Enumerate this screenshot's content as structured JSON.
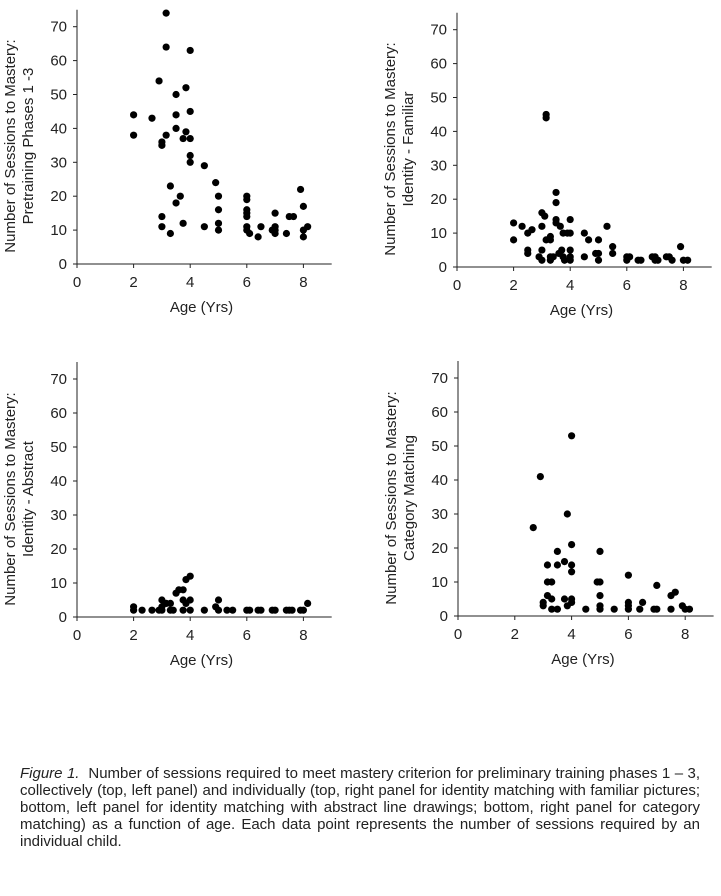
{
  "chart_data": [
    {
      "type": "scatter",
      "panel": "top-left",
      "xlabel": "Age (Yrs)",
      "ylabel": [
        "Number of Sessions to Mastery:",
        "Pretraining Phases 1 -3"
      ],
      "xlim": [
        0,
        9
      ],
      "ylim": [
        0,
        75
      ],
      "xticks": [
        0,
        2,
        4,
        6,
        8
      ],
      "yticks": [
        0,
        10,
        20,
        30,
        40,
        50,
        60,
        70
      ],
      "points": [
        [
          2,
          44
        ],
        [
          2,
          38
        ],
        [
          2.65,
          43
        ],
        [
          2.9,
          54
        ],
        [
          3,
          36
        ],
        [
          3,
          35
        ],
        [
          3,
          14
        ],
        [
          3,
          11
        ],
        [
          3.15,
          74
        ],
        [
          3.15,
          64
        ],
        [
          3.15,
          38
        ],
        [
          3.3,
          23
        ],
        [
          3.3,
          9
        ],
        [
          3.5,
          50
        ],
        [
          3.5,
          44
        ],
        [
          3.5,
          40
        ],
        [
          3.5,
          18
        ],
        [
          3.65,
          20
        ],
        [
          3.75,
          37
        ],
        [
          3.75,
          12
        ],
        [
          3.85,
          52
        ],
        [
          3.85,
          39
        ],
        [
          4,
          63
        ],
        [
          4,
          45
        ],
        [
          4,
          37
        ],
        [
          4,
          32
        ],
        [
          4,
          30
        ],
        [
          4.5,
          29
        ],
        [
          4.5,
          11
        ],
        [
          4.9,
          24
        ],
        [
          5,
          20
        ],
        [
          5,
          16
        ],
        [
          5,
          12
        ],
        [
          5,
          10
        ],
        [
          6,
          20
        ],
        [
          6,
          19
        ],
        [
          6,
          16
        ],
        [
          6,
          15
        ],
        [
          6,
          14
        ],
        [
          6,
          11
        ],
        [
          6,
          10
        ],
        [
          6.1,
          9
        ],
        [
          6.4,
          8
        ],
        [
          6.5,
          11
        ],
        [
          6.9,
          10
        ],
        [
          7,
          15
        ],
        [
          7,
          11
        ],
        [
          7,
          10
        ],
        [
          7,
          9
        ],
        [
          7.4,
          9
        ],
        [
          7.5,
          14
        ],
        [
          7.65,
          14
        ],
        [
          7.9,
          22
        ],
        [
          8,
          17
        ],
        [
          8,
          10
        ],
        [
          8,
          8
        ],
        [
          8.15,
          11
        ]
      ]
    },
    {
      "type": "scatter",
      "panel": "top-right",
      "xlabel": "Age (Yrs)",
      "ylabel": [
        "Number of Sessions to Mastery:",
        "Identity - Familiar"
      ],
      "xlim": [
        0,
        9
      ],
      "ylim": [
        0,
        75
      ],
      "xticks": [
        0,
        2,
        4,
        6,
        8
      ],
      "yticks": [
        0,
        10,
        20,
        30,
        40,
        50,
        60,
        70
      ],
      "points": [
        [
          2,
          13
        ],
        [
          2,
          8
        ],
        [
          2.3,
          12
        ],
        [
          2.5,
          10
        ],
        [
          2.5,
          5
        ],
        [
          2.5,
          4
        ],
        [
          2.65,
          11
        ],
        [
          2.9,
          3
        ],
        [
          3,
          16
        ],
        [
          3,
          12
        ],
        [
          3,
          5
        ],
        [
          3,
          2
        ],
        [
          3.1,
          15
        ],
        [
          3.15,
          45
        ],
        [
          3.15,
          44
        ],
        [
          3.15,
          8
        ],
        [
          3.3,
          9
        ],
        [
          3.3,
          8
        ],
        [
          3.3,
          3
        ],
        [
          3.3,
          2
        ],
        [
          3.4,
          3
        ],
        [
          3.5,
          22
        ],
        [
          3.5,
          19
        ],
        [
          3.5,
          14
        ],
        [
          3.5,
          13
        ],
        [
          3.6,
          4
        ],
        [
          3.65,
          12
        ],
        [
          3.7,
          5
        ],
        [
          3.75,
          10
        ],
        [
          3.75,
          3
        ],
        [
          3.8,
          2
        ],
        [
          3.9,
          10
        ],
        [
          4,
          14
        ],
        [
          4,
          10
        ],
        [
          4,
          5
        ],
        [
          4,
          3
        ],
        [
          4,
          2
        ],
        [
          4.5,
          10
        ],
        [
          4.5,
          3
        ],
        [
          4.65,
          8
        ],
        [
          4.9,
          4
        ],
        [
          5,
          8
        ],
        [
          5,
          4
        ],
        [
          5,
          2
        ],
        [
          5.3,
          12
        ],
        [
          5.5,
          6
        ],
        [
          5.5,
          4
        ],
        [
          6,
          3
        ],
        [
          6,
          2
        ],
        [
          6.1,
          3
        ],
        [
          6.4,
          2
        ],
        [
          6.5,
          2
        ],
        [
          6.9,
          3
        ],
        [
          7,
          3
        ],
        [
          7,
          2
        ],
        [
          7.1,
          2
        ],
        [
          7.4,
          3
        ],
        [
          7.5,
          3
        ],
        [
          7.6,
          2
        ],
        [
          7.9,
          6
        ],
        [
          8,
          2
        ],
        [
          8.15,
          2
        ]
      ]
    },
    {
      "type": "scatter",
      "panel": "bottom-left",
      "xlabel": "Age (Yrs)",
      "ylabel": [
        "Number of Sessions to Mastery:",
        "Identity - Abstract"
      ],
      "xlim": [
        0,
        9
      ],
      "ylim": [
        0,
        75
      ],
      "xticks": [
        0,
        2,
        4,
        6,
        8
      ],
      "yticks": [
        0,
        10,
        20,
        30,
        40,
        50,
        60,
        70
      ],
      "points": [
        [
          2,
          3
        ],
        [
          2,
          2
        ],
        [
          2.3,
          2
        ],
        [
          2.65,
          2
        ],
        [
          2.9,
          2
        ],
        [
          3,
          5
        ],
        [
          3,
          3
        ],
        [
          3,
          2
        ],
        [
          3.15,
          4
        ],
        [
          3.3,
          4
        ],
        [
          3.3,
          2
        ],
        [
          3.4,
          2
        ],
        [
          3.5,
          7
        ],
        [
          3.6,
          8
        ],
        [
          3.75,
          8
        ],
        [
          3.75,
          5
        ],
        [
          3.75,
          2
        ],
        [
          3.85,
          11
        ],
        [
          3.85,
          4
        ],
        [
          4,
          12
        ],
        [
          4,
          5
        ],
        [
          4,
          2
        ],
        [
          4.5,
          2
        ],
        [
          4.9,
          3
        ],
        [
          5,
          5
        ],
        [
          5,
          2
        ],
        [
          5.3,
          2
        ],
        [
          5.5,
          2
        ],
        [
          6,
          2
        ],
        [
          6.1,
          2
        ],
        [
          6.4,
          2
        ],
        [
          6.5,
          2
        ],
        [
          6.9,
          2
        ],
        [
          7,
          2
        ],
        [
          7.4,
          2
        ],
        [
          7.5,
          2
        ],
        [
          7.6,
          2
        ],
        [
          7.9,
          2
        ],
        [
          8,
          2
        ],
        [
          8.15,
          4
        ]
      ]
    },
    {
      "type": "scatter",
      "panel": "bottom-right",
      "xlabel": "Age (Yrs)",
      "ylabel": [
        "Number of Sessions to Mastery:",
        "Category Matching"
      ],
      "xlim": [
        0,
        9
      ],
      "ylim": [
        0,
        75
      ],
      "xticks": [
        0,
        2,
        4,
        6,
        8
      ],
      "yticks": [
        0,
        10,
        20,
        30,
        40,
        50,
        60,
        70
      ],
      "points": [
        [
          2.65,
          26
        ],
        [
          2.9,
          41
        ],
        [
          3,
          4
        ],
        [
          3,
          3
        ],
        [
          3.15,
          15
        ],
        [
          3.15,
          10
        ],
        [
          3.15,
          6
        ],
        [
          3.3,
          10
        ],
        [
          3.3,
          5
        ],
        [
          3.3,
          2
        ],
        [
          3.5,
          19
        ],
        [
          3.5,
          15
        ],
        [
          3.5,
          2
        ],
        [
          3.75,
          16
        ],
        [
          3.75,
          5
        ],
        [
          3.85,
          30
        ],
        [
          3.85,
          3
        ],
        [
          4,
          53
        ],
        [
          4,
          21
        ],
        [
          4,
          15
        ],
        [
          4,
          13
        ],
        [
          4,
          5
        ],
        [
          4,
          4
        ],
        [
          4.5,
          2
        ],
        [
          4.9,
          10
        ],
        [
          5,
          19
        ],
        [
          5,
          10
        ],
        [
          5,
          6
        ],
        [
          5,
          3
        ],
        [
          5,
          2
        ],
        [
          5.5,
          2
        ],
        [
          6,
          12
        ],
        [
          6,
          4
        ],
        [
          6,
          3
        ],
        [
          6,
          2
        ],
        [
          6.4,
          2
        ],
        [
          6.5,
          4
        ],
        [
          6.9,
          2
        ],
        [
          7,
          9
        ],
        [
          7,
          2
        ],
        [
          7.5,
          6
        ],
        [
          7.65,
          7
        ],
        [
          7.5,
          2
        ],
        [
          7.9,
          3
        ],
        [
          8,
          2
        ],
        [
          8.15,
          2
        ]
      ]
    }
  ],
  "caption": {
    "label": "Figure 1.",
    "text": "Number of sessions required to meet mastery criterion for preliminary training phases 1 – 3, collectively (top, left panel) and individually (top, right panel for identity matching with familiar pictures; bottom, left panel for identity matching with abstract line drawings; bottom, right panel for category matching) as a function of age.  Each data point represents the number of sessions required by an individual child."
  }
}
